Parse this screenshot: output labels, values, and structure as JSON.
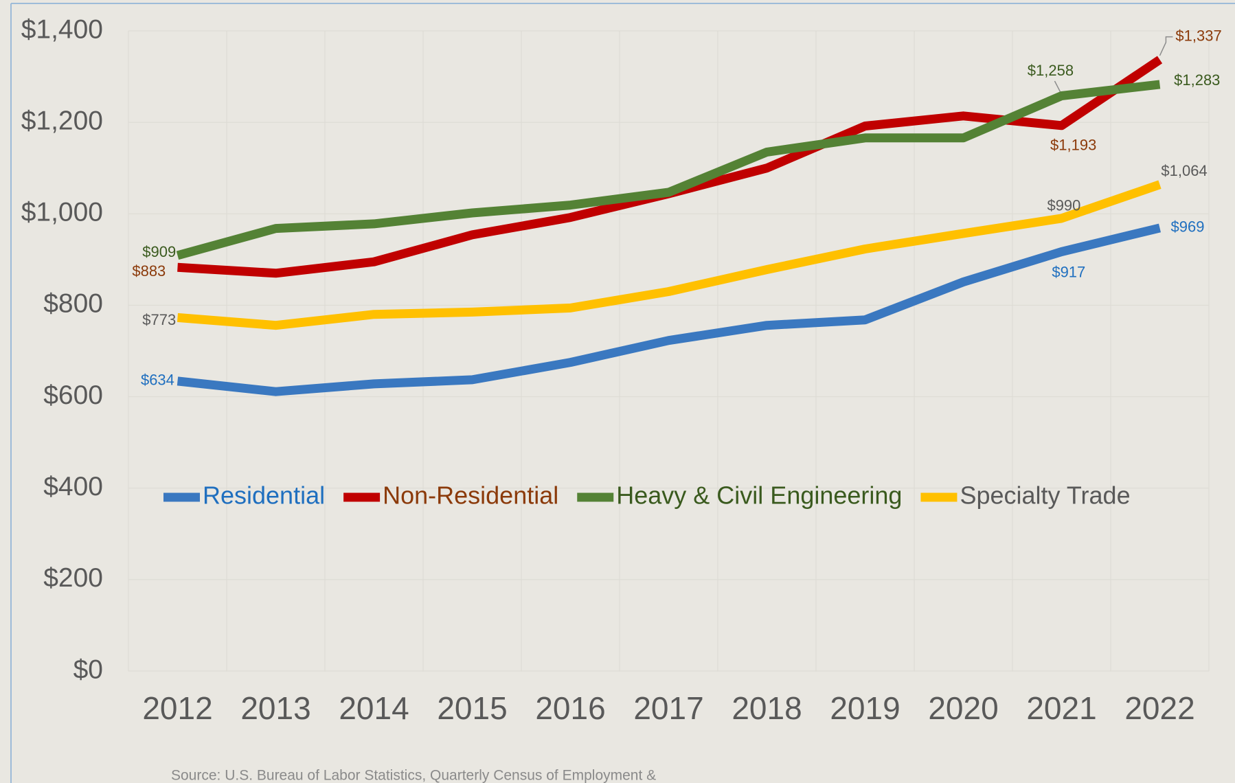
{
  "chart_data": {
    "type": "line",
    "categories": [
      "2012",
      "2013",
      "2014",
      "2015",
      "2016",
      "2017",
      "2018",
      "2019",
      "2020",
      "2021",
      "2022"
    ],
    "series": [
      {
        "name": "Residential",
        "color": "#3a78c0",
        "label_color": "#1f6fbf",
        "values": [
          634,
          611,
          628,
          637,
          675,
          723,
          756,
          768,
          851,
          917,
          969
        ],
        "value_labels": [
          "$634",
          null,
          null,
          null,
          null,
          null,
          null,
          null,
          null,
          "$917",
          "$969"
        ]
      },
      {
        "name": "Non-Residential",
        "color": "#c00000",
        "label_color": "#8b3a0a",
        "values": [
          883,
          870,
          895,
          954,
          992,
          1044,
          1100,
          1192,
          1214,
          1193,
          1337
        ],
        "value_labels": [
          "$883",
          null,
          null,
          null,
          null,
          null,
          null,
          null,
          null,
          "$1,193",
          "$1,337"
        ]
      },
      {
        "name": "Heavy & Civil Engineering",
        "color": "#548235",
        "label_color": "#3a5a1e",
        "values": [
          909,
          968,
          978,
          1002,
          1019,
          1047,
          1135,
          1166,
          1166,
          1258,
          1283
        ],
        "value_labels": [
          "$909",
          null,
          null,
          null,
          null,
          null,
          null,
          null,
          null,
          "$1,258",
          "$1,283"
        ]
      },
      {
        "name": "Specialty Trade",
        "color": "#ffc000",
        "label_color": "#595959",
        "values": [
          773,
          756,
          780,
          785,
          794,
          830,
          878,
          923,
          957,
          990,
          1064
        ],
        "value_labels": [
          "$773",
          null,
          null,
          null,
          null,
          null,
          null,
          null,
          null,
          "$990",
          "$1,064"
        ]
      }
    ],
    "ylim": [
      0,
      1400
    ],
    "yticks": [
      {
        "value": 0,
        "label": "$0"
      },
      {
        "value": 200,
        "label": "$200"
      },
      {
        "value": 400,
        "label": "$400"
      },
      {
        "value": 600,
        "label": "$600"
      },
      {
        "value": 800,
        "label": "$800"
      },
      {
        "value": 1000,
        "label": "$1,000"
      },
      {
        "value": 1200,
        "label": "$1,200"
      },
      {
        "value": 1400,
        "label": "$1,400"
      }
    ],
    "grid": true,
    "legend": "center",
    "source": "Source: U.S. Bureau of Labor Statistics, Quarterly Census of Employment &"
  }
}
